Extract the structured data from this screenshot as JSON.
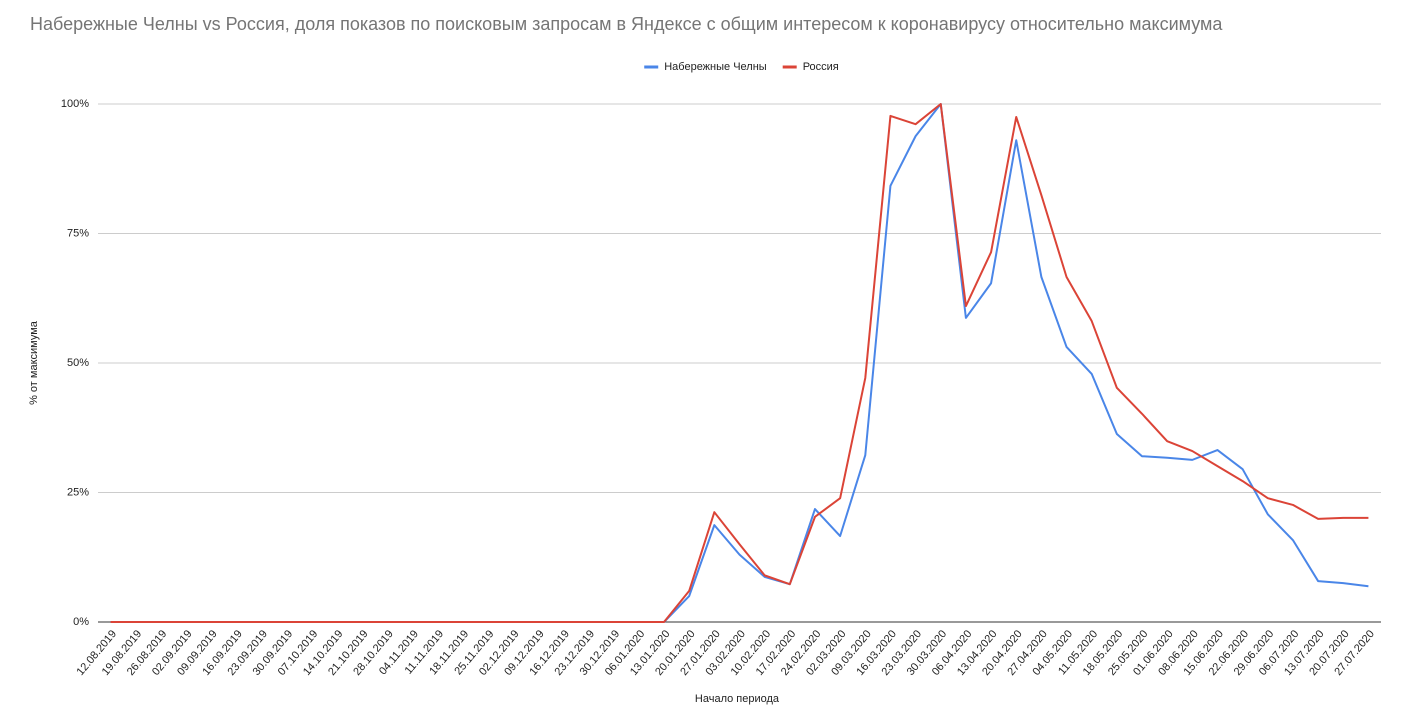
{
  "chart_data": {
    "type": "line",
    "title": "Набережные Челны vs Россия, доля показов по поисковым запросам в Яндексе с общим интересом к коронавирусу относительно максимума",
    "x_label": "Начало периода",
    "y_label": "% от максимума",
    "categories": [
      "12.08.2019",
      "19.08.2019",
      "26.08.2019",
      "02.09.2019",
      "09.09.2019",
      "16.09.2019",
      "23.09.2019",
      "30.09.2019",
      "07.10.2019",
      "14.10.2019",
      "21.10.2019",
      "28.10.2019",
      "04.11.2019",
      "11.11.2019",
      "18.11.2019",
      "25.11.2019",
      "02.12.2019",
      "09.12.2019",
      "16.12.2019",
      "23.12.2019",
      "30.12.2019",
      "06.01.2020",
      "13.01.2020",
      "20.01.2020",
      "27.01.2020",
      "03.02.2020",
      "10.02.2020",
      "17.02.2020",
      "24.02.2020",
      "02.03.2020",
      "09.03.2020",
      "16.03.2020",
      "23.03.2020",
      "30.03.2020",
      "06.04.2020",
      "13.04.2020",
      "20.04.2020",
      "27.04.2020",
      "04.05.2020",
      "11.05.2020",
      "18.05.2020",
      "25.05.2020",
      "01.06.2020",
      "08.06.2020",
      "15.06.2020",
      "22.06.2020",
      "29.06.2020",
      "06.07.2020",
      "13.07.2020",
      "20.07.2020",
      "27.07.2020"
    ],
    "series": [
      {
        "name": "Набережные Челны",
        "color": "#4a86e8",
        "values": [
          0,
          0,
          0,
          0,
          0,
          0,
          0,
          0,
          0,
          0,
          0,
          0,
          0,
          0,
          0,
          0,
          0,
          0,
          0,
          0,
          0,
          0,
          0,
          5,
          18.7,
          13,
          8.7,
          7.3,
          21.8,
          16.6,
          32.2,
          84.2,
          93.8,
          100,
          58.7,
          65.4,
          93,
          66.6,
          53.1,
          47.9,
          36.3,
          32,
          31.7,
          31.3,
          33.2,
          29.5,
          20.8,
          15.8,
          7.9,
          7.5,
          6.9
        ]
      },
      {
        "name": "Россия",
        "color": "#db4437",
        "values": [
          0,
          0,
          0,
          0,
          0,
          0,
          0,
          0,
          0,
          0,
          0,
          0,
          0,
          0,
          0,
          0,
          0,
          0,
          0,
          0,
          0,
          0,
          0,
          6,
          21.2,
          15,
          9,
          7.3,
          20.3,
          23.9,
          47.1,
          97.7,
          96.1,
          100,
          61,
          71.4,
          97.5,
          82.4,
          66.6,
          58.1,
          45.2,
          40.2,
          34.9,
          33,
          30.1,
          27.2,
          23.9,
          22.6,
          19.9,
          20.1,
          20.1
        ]
      }
    ],
    "ylim": [
      0,
      100
    ],
    "yticks": [
      {
        "value": 0,
        "label": "0%"
      },
      {
        "value": 25,
        "label": "25%"
      },
      {
        "value": 50,
        "label": "50%"
      },
      {
        "value": 75,
        "label": "75%"
      },
      {
        "value": 100,
        "label": "100%"
      }
    ],
    "grid": true,
    "legend": "top"
  }
}
